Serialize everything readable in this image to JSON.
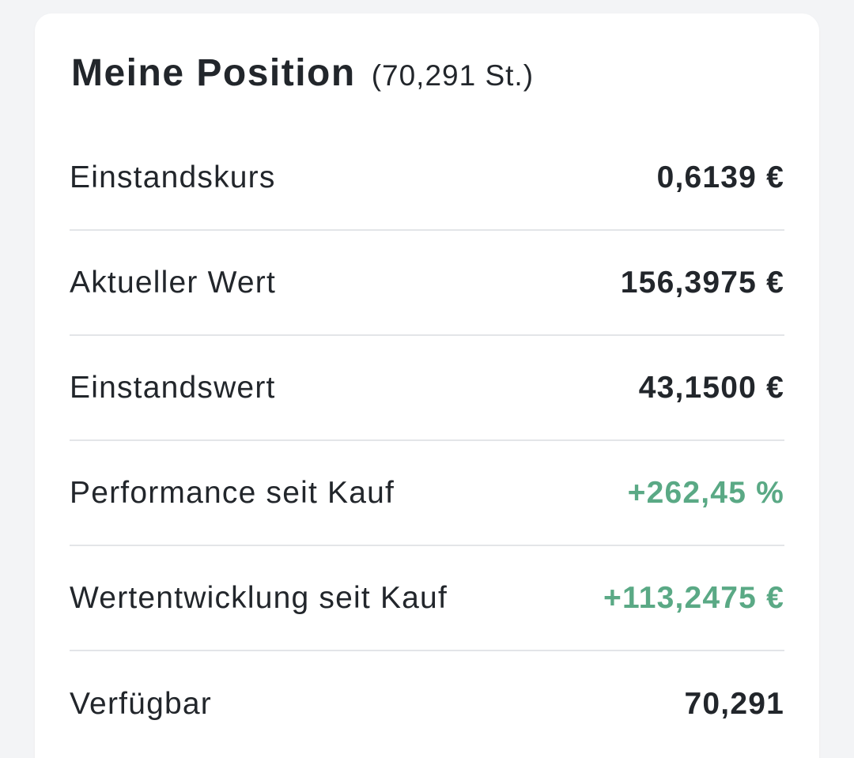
{
  "position_card": {
    "title": "Meine Position",
    "share_count": "(70,291 St.)",
    "rows": [
      {
        "label": "Einstandskurs",
        "value": "0,6139 €",
        "positive": false
      },
      {
        "label": "Aktueller Wert",
        "value": "156,3975 €",
        "positive": false
      },
      {
        "label": "Einstandswert",
        "value": "43,1500 €",
        "positive": false
      },
      {
        "label": "Performance seit Kauf",
        "value": "+262,45 %",
        "positive": true
      },
      {
        "label": "Wertentwicklung seit Kauf",
        "value": "+113,2475 €",
        "positive": true
      },
      {
        "label": "Verfügbar",
        "value": "70,291",
        "positive": false
      }
    ]
  },
  "colors": {
    "background": "#f3f4f6",
    "card": "#ffffff",
    "text": "#22262b",
    "positive": "#5aa985",
    "divider": "#e3e5e8"
  }
}
